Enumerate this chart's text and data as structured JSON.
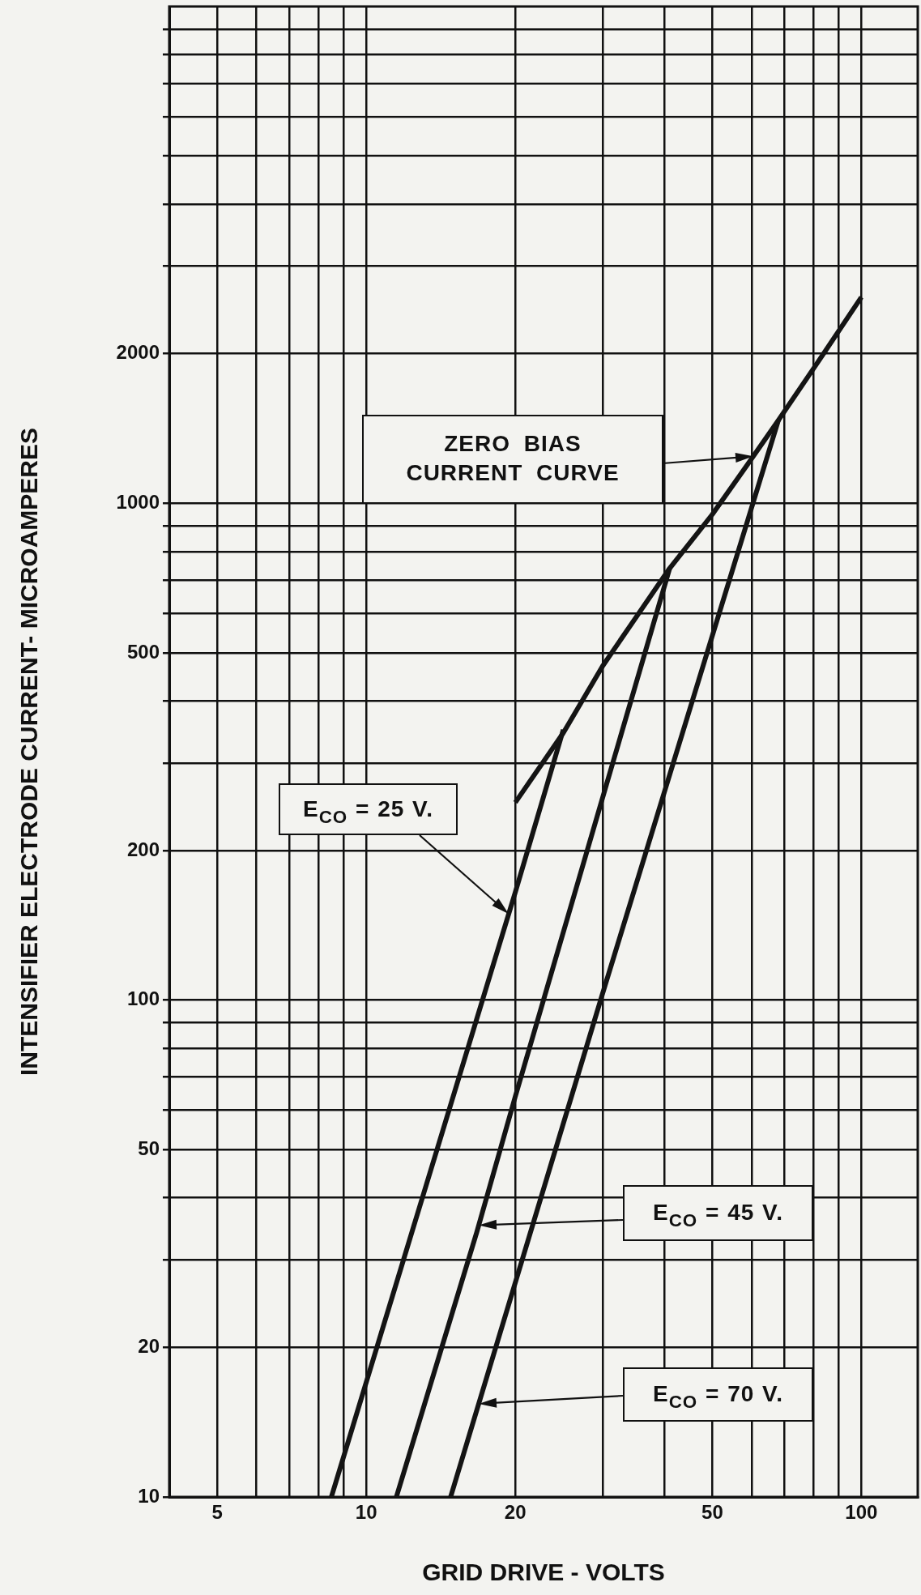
{
  "chart_data": {
    "type": "line",
    "xlabel": "GRID DRIVE - VOLTS",
    "ylabel": "INTENSIFIER ELECTRODE CURRENT- MICROAMPERES",
    "log": "xy",
    "grid": true,
    "marker": "none",
    "line_style": "solid",
    "xlim": [
      4,
      130
    ],
    "ylim": [
      10,
      10000
    ],
    "xticks": [
      5,
      {
        "value": 6,
        "label": null
      },
      {
        "value": 7,
        "label": null
      },
      {
        "value": 8,
        "label": null
      },
      {
        "value": 9,
        "label": null
      },
      10,
      20,
      {
        "value": 30,
        "label": null
      },
      {
        "value": 40,
        "label": null
      },
      50,
      {
        "value": 60,
        "label": null
      },
      {
        "value": 70,
        "label": null
      },
      {
        "value": 80,
        "label": null
      },
      {
        "value": 90,
        "label": null
      },
      100
    ],
    "yticks": [
      10,
      20,
      {
        "value": 30,
        "label": null
      },
      {
        "value": 40,
        "label": null
      },
      50,
      {
        "value": 60,
        "label": null
      },
      {
        "value": 70,
        "label": null
      },
      {
        "value": 80,
        "label": null
      },
      {
        "value": 90,
        "label": null
      },
      100,
      200,
      {
        "value": 300,
        "label": null
      },
      {
        "value": 400,
        "label": null
      },
      500,
      {
        "value": 600,
        "label": null
      },
      {
        "value": 700,
        "label": null
      },
      {
        "value": 800,
        "label": null
      },
      {
        "value": 900,
        "label": null
      },
      1000,
      2000,
      {
        "value": 3000,
        "label": null
      },
      {
        "value": 4000,
        "label": null
      },
      {
        "value": 5000,
        "label": null
      },
      {
        "value": 6000,
        "label": null
      },
      {
        "value": 7000,
        "label": null
      },
      {
        "value": 8000,
        "label": null
      },
      {
        "value": 9000,
        "label": null
      }
    ],
    "series": [
      {
        "name": "ZERO BIAS CURRENT CURVE",
        "color": "#141414",
        "x": [
          20,
          25,
          30,
          41,
          50,
          59,
          68,
          81,
          100
        ],
        "values": [
          250,
          345,
          470,
          740,
          950,
          1200,
          1470,
          1900,
          2600
        ]
      },
      {
        "name": "E$_{CO}$ = 25 V.",
        "color": "#141414",
        "x": [
          8.5,
          20,
          25
        ],
        "values": [
          10,
          165,
          350
        ]
      },
      {
        "name": "E$_{CO}$ = 45 V.",
        "color": "#141414",
        "x": [
          11.5,
          16.7,
          20,
          41
        ],
        "values": [
          10,
          34,
          64,
          740
        ]
      },
      {
        "name": "E$_{CO}$ = 70 V.",
        "color": "#141414",
        "x": [
          14.8,
          30,
          68
        ],
        "values": [
          10,
          103,
          1470
        ]
      }
    ]
  }
}
